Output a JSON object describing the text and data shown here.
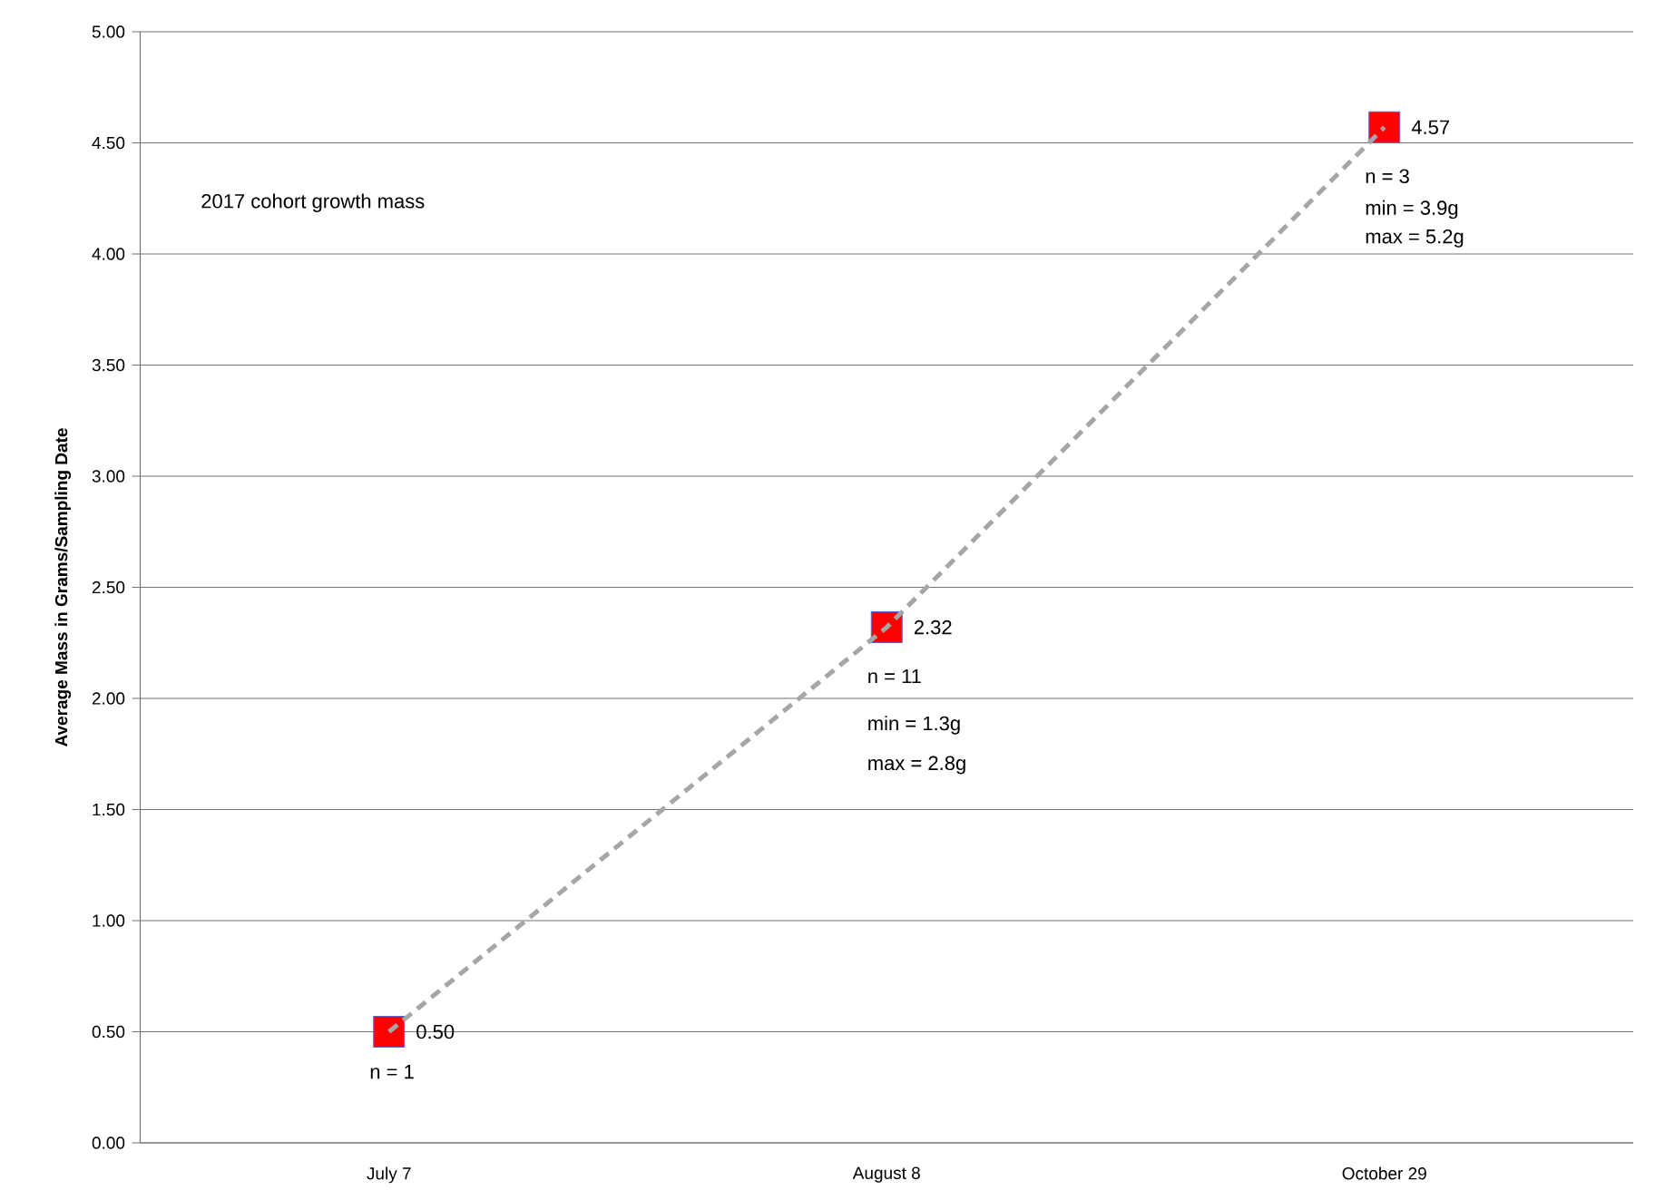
{
  "chart_data": {
    "type": "line",
    "title": "2017 cohort growth mass",
    "ylabel": "Average Mass in Grams/Sampling Date",
    "categories": [
      "July 7",
      "August 8",
      "October 29"
    ],
    "series": [
      {
        "type": "scatter",
        "color": "#ff0000",
        "marker": "square",
        "values": [
          0.5,
          2.32,
          4.57
        ],
        "value_labels": [
          "0.50",
          "2.32",
          "4.57"
        ]
      },
      {
        "color": "#a6a6a6",
        "line_style": "dashed",
        "marker": "none",
        "values": [
          0.5,
          2.32,
          4.57
        ]
      }
    ],
    "ylim": [
      0,
      5
    ],
    "yticks": [
      {
        "value": 0,
        "label": "0.00"
      },
      {
        "value": 0.5,
        "label": "0.50"
      },
      {
        "value": 1,
        "label": "1.00"
      },
      {
        "value": 1.5,
        "label": "1.50"
      },
      {
        "value": 2,
        "label": "2.00"
      },
      {
        "value": 2.5,
        "label": "2.50"
      },
      {
        "value": 3,
        "label": "3.00"
      },
      {
        "value": 3.5,
        "label": "3.50"
      },
      {
        "value": 4,
        "label": "4.00"
      },
      {
        "value": 4.5,
        "label": "4.50"
      },
      {
        "value": 5,
        "label": "5.00"
      }
    ],
    "grid": "y",
    "annotations": [
      "n = 1",
      "n = 11",
      "min = 1.3g",
      "max = 2.8g",
      "n = 3",
      "min = 3.9g",
      "max = 5.2g"
    ]
  }
}
